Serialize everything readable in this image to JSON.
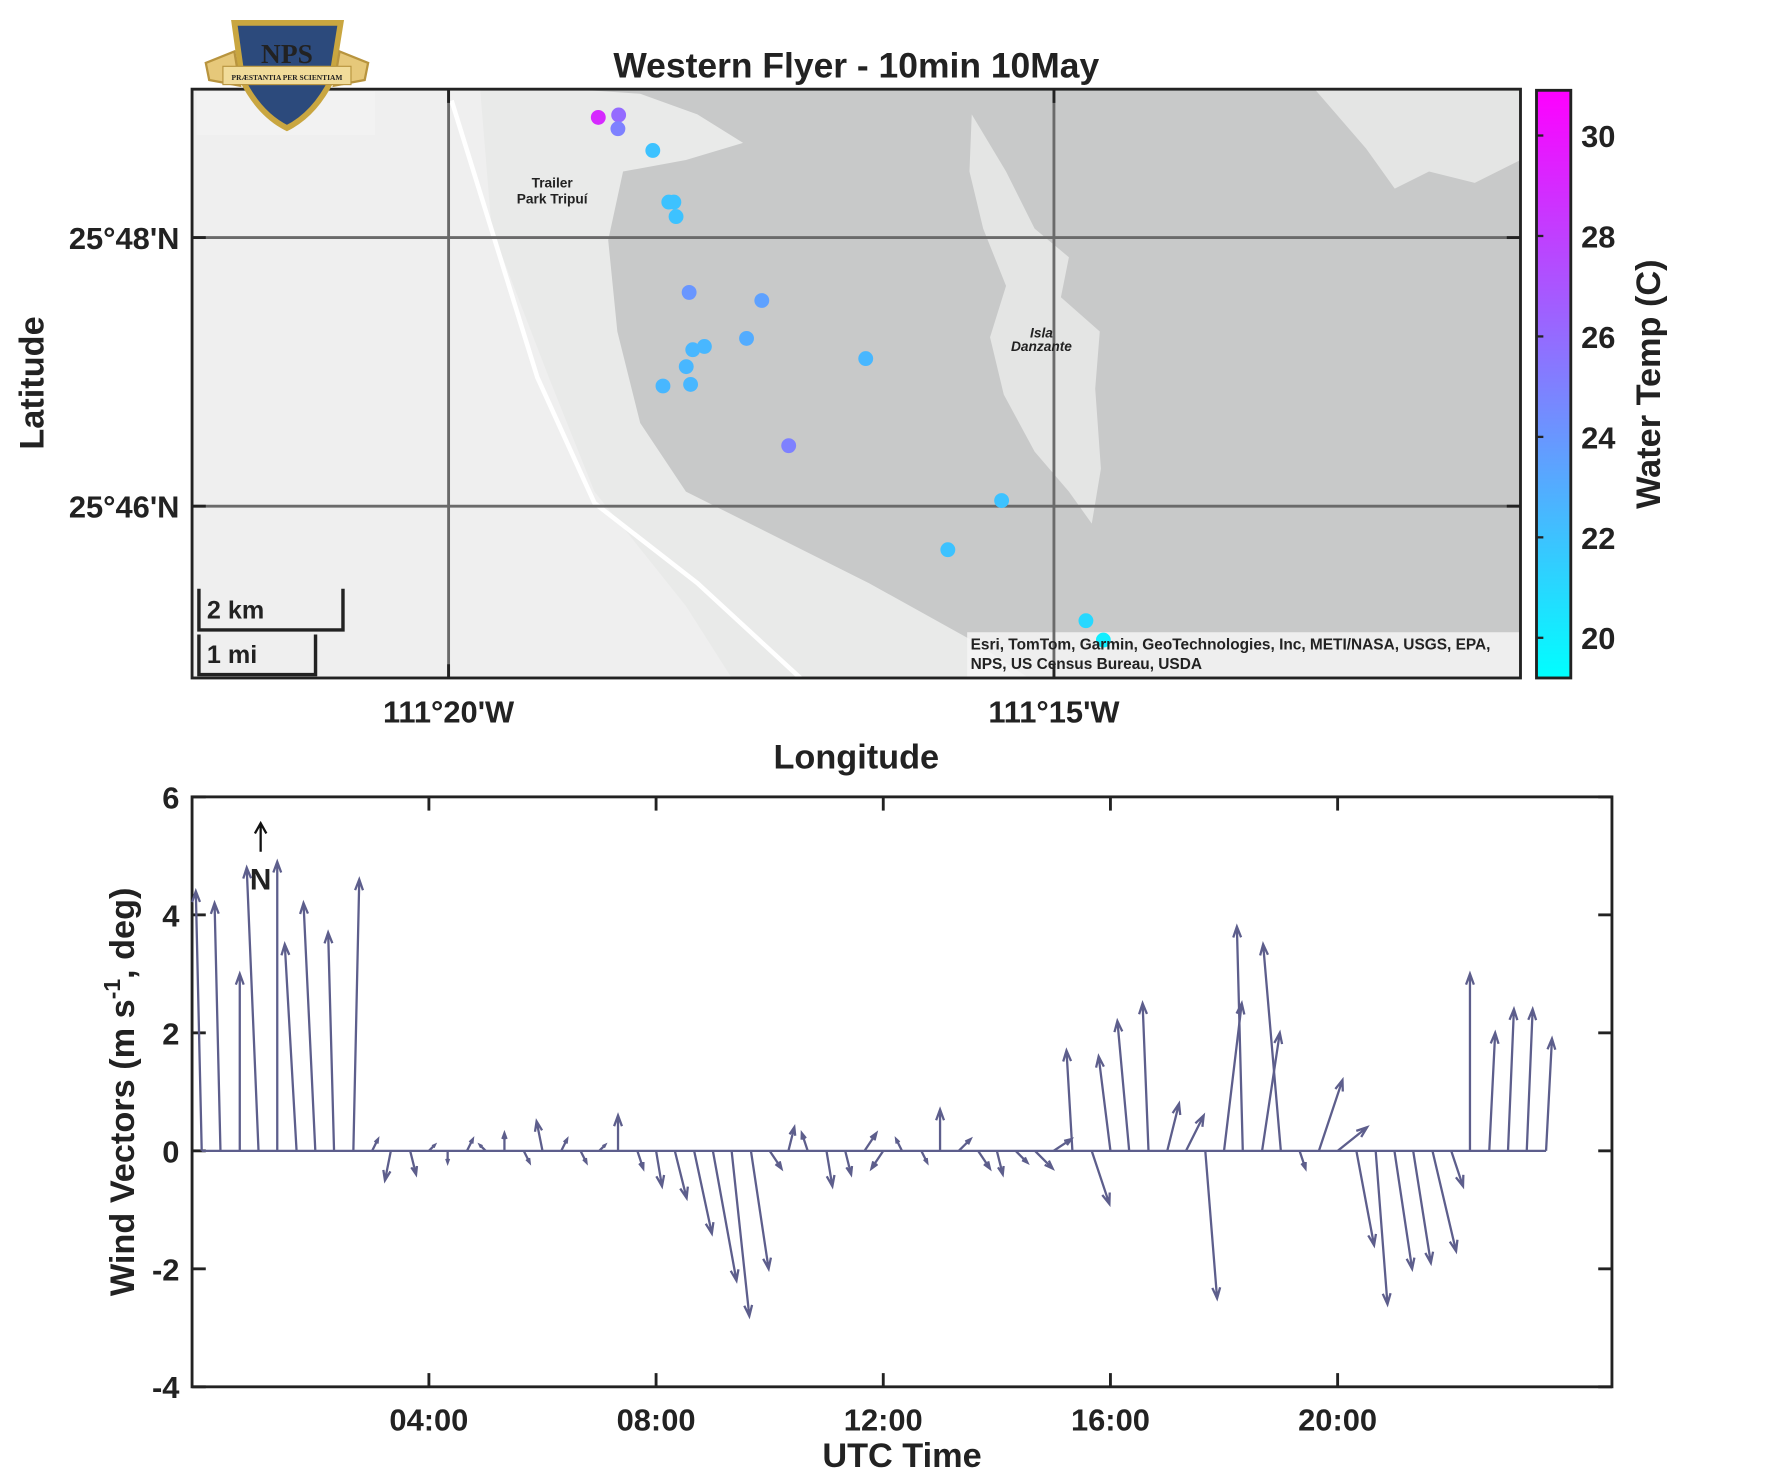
{
  "chart_data": [
    {
      "type": "scatter",
      "title": "Western Flyer - 10min 10May",
      "xlabel": "Longitude",
      "ylabel": "Latitude",
      "colorbar_label": "Water Temp (C)",
      "colormap": [
        "#00ffff",
        "#ff00ff"
      ],
      "logo_text": "NPS",
      "logo_motto": "PRÆSTANTIA PER SCIENTIAM",
      "map_labels": [
        "Trailer",
        "Park Tripuí",
        "Isla",
        "Danzante"
      ],
      "scale_labels": [
        "2 km",
        "1 mi"
      ],
      "attribution": [
        "Esri, TomTom, Garmin, GeoTechnologies, Inc, METI/NASA, USGS, EPA,",
        "NPS, US Census Bureau, USDA"
      ],
      "xlim": [
        -111.3686,
        -111.1858
      ],
      "ylim": [
        25.7454,
        25.8184
      ],
      "xticks": [
        {
          "value": -111.3333,
          "label": "111°20'W"
        },
        {
          "value": -111.25,
          "label": "111°15'W"
        }
      ],
      "yticks": [
        {
          "value": 25.7667,
          "label": "25°46'N"
        },
        {
          "value": 25.8,
          "label": "25°48'N"
        }
      ],
      "clim": [
        19.2,
        30.9
      ],
      "cticks": [
        20,
        22,
        24,
        26,
        28,
        30
      ],
      "grid": true,
      "lon": [
        -111.3127,
        -111.3099,
        -111.31,
        -111.3052,
        -111.303,
        -111.3023,
        -111.302,
        -111.3002,
        -111.2902,
        -111.2923,
        -111.2997,
        -111.2981,
        -111.3006,
        -111.3038,
        -111.3,
        -111.2759,
        -111.2865,
        -111.2572,
        -111.2646,
        -111.2456,
        -111.2432
      ],
      "lat": [
        25.8149,
        25.8152,
        25.8135,
        25.8108,
        25.8044,
        25.8044,
        25.8026,
        25.7932,
        25.7922,
        25.7875,
        25.7861,
        25.7865,
        25.784,
        25.7816,
        25.7818,
        25.785,
        25.7742,
        25.7674,
        25.7613,
        25.7525,
        25.7501
      ],
      "temp": [
        29,
        26,
        25,
        22,
        22,
        22,
        22,
        24,
        23.5,
        23,
        22.5,
        22.5,
        22.5,
        22.5,
        22.5,
        22.5,
        25,
        22,
        22,
        21,
        20
      ]
    },
    {
      "type": "quiver",
      "xlabel": "UTC Time",
      "ylabel_parts": [
        "Wind Vectors (m s",
        "-1",
        ", deg)"
      ],
      "annotation": "N",
      "color": "#5d5e8c",
      "xlim": [
        -0.17,
        24.83
      ],
      "ylim": [
        -4,
        6
      ],
      "xticks": [
        {
          "value": 4,
          "label": "04:00"
        },
        {
          "value": 8,
          "label": "08:00"
        },
        {
          "value": 12,
          "label": "12:00"
        },
        {
          "value": 16,
          "label": "16:00"
        },
        {
          "value": 20,
          "label": "20:00"
        }
      ],
      "yticks": [
        -4,
        -2,
        0,
        2,
        4,
        6
      ],
      "x": [
        0,
        0.33,
        0.67,
        1,
        1.33,
        1.67,
        2,
        2.33,
        2.67,
        3,
        3.33,
        3.67,
        4,
        4.33,
        4.67,
        5,
        5.33,
        5.67,
        6,
        6.33,
        6.67,
        7,
        7.33,
        7.67,
        8,
        8.33,
        8.67,
        9,
        9.33,
        9.67,
        10,
        10.33,
        10.67,
        11,
        11.33,
        11.67,
        12,
        12.33,
        12.67,
        13,
        13.33,
        13.67,
        14,
        14.33,
        14.67,
        15,
        15.33,
        15.67,
        16,
        16.33,
        16.67,
        17,
        17.33,
        17.67,
        18,
        18.33,
        18.67,
        19,
        19.33,
        19.67,
        20,
        20.33,
        20.67,
        21,
        21.33,
        21.67,
        22,
        22.33,
        22.67,
        23,
        23.33,
        23.67
      ],
      "u": [
        -0.1,
        -0.1,
        0.0,
        -0.2,
        0.0,
        -0.2,
        -0.2,
        -0.1,
        0.1,
        0.1,
        -0.1,
        0.1,
        0.1,
        0.0,
        0.1,
        -0.1,
        0.0,
        0.1,
        -0.1,
        0.1,
        0.1,
        0.1,
        0.0,
        0.1,
        0.1,
        0.2,
        0.3,
        0.4,
        0.3,
        0.3,
        0.2,
        0.1,
        -0.1,
        0.1,
        0.1,
        0.2,
        -0.2,
        -0.1,
        0.1,
        0.0,
        0.2,
        0.2,
        0.1,
        0.2,
        0.3,
        0.3,
        -0.1,
        0.3,
        -0.2,
        -0.2,
        -0.1,
        0.2,
        0.3,
        0.2,
        0.3,
        -0.1,
        0.3,
        -0.3,
        0.1,
        0.4,
        0.5,
        0.3,
        0.2,
        0.3,
        0.3,
        0.4,
        0.2,
        0.0,
        0.1,
        0.1,
        0.1,
        0.1
      ],
      "v": [
        4.4,
        4.2,
        3.0,
        4.8,
        4.9,
        3.5,
        4.2,
        3.7,
        4.6,
        0.2,
        -0.5,
        -0.4,
        0.1,
        -0.2,
        0.2,
        0.1,
        0.3,
        -0.2,
        0.5,
        0.2,
        -0.2,
        0.1,
        0.6,
        -0.3,
        -0.6,
        -0.8,
        -1.4,
        -2.2,
        -2.8,
        -2.0,
        -0.3,
        0.4,
        0.3,
        -0.6,
        -0.4,
        0.3,
        -0.3,
        0.2,
        -0.2,
        0.7,
        0.2,
        -0.3,
        -0.4,
        -0.2,
        -0.3,
        0.2,
        1.7,
        -0.9,
        1.6,
        2.2,
        2.5,
        0.8,
        0.6,
        -2.5,
        2.5,
        3.8,
        2.0,
        3.5,
        -0.3,
        1.2,
        0.4,
        -1.6,
        -2.6,
        -2.0,
        -1.9,
        -1.7,
        -0.6,
        3.0,
        2.0,
        2.4,
        2.4,
        1.9
      ]
    }
  ]
}
